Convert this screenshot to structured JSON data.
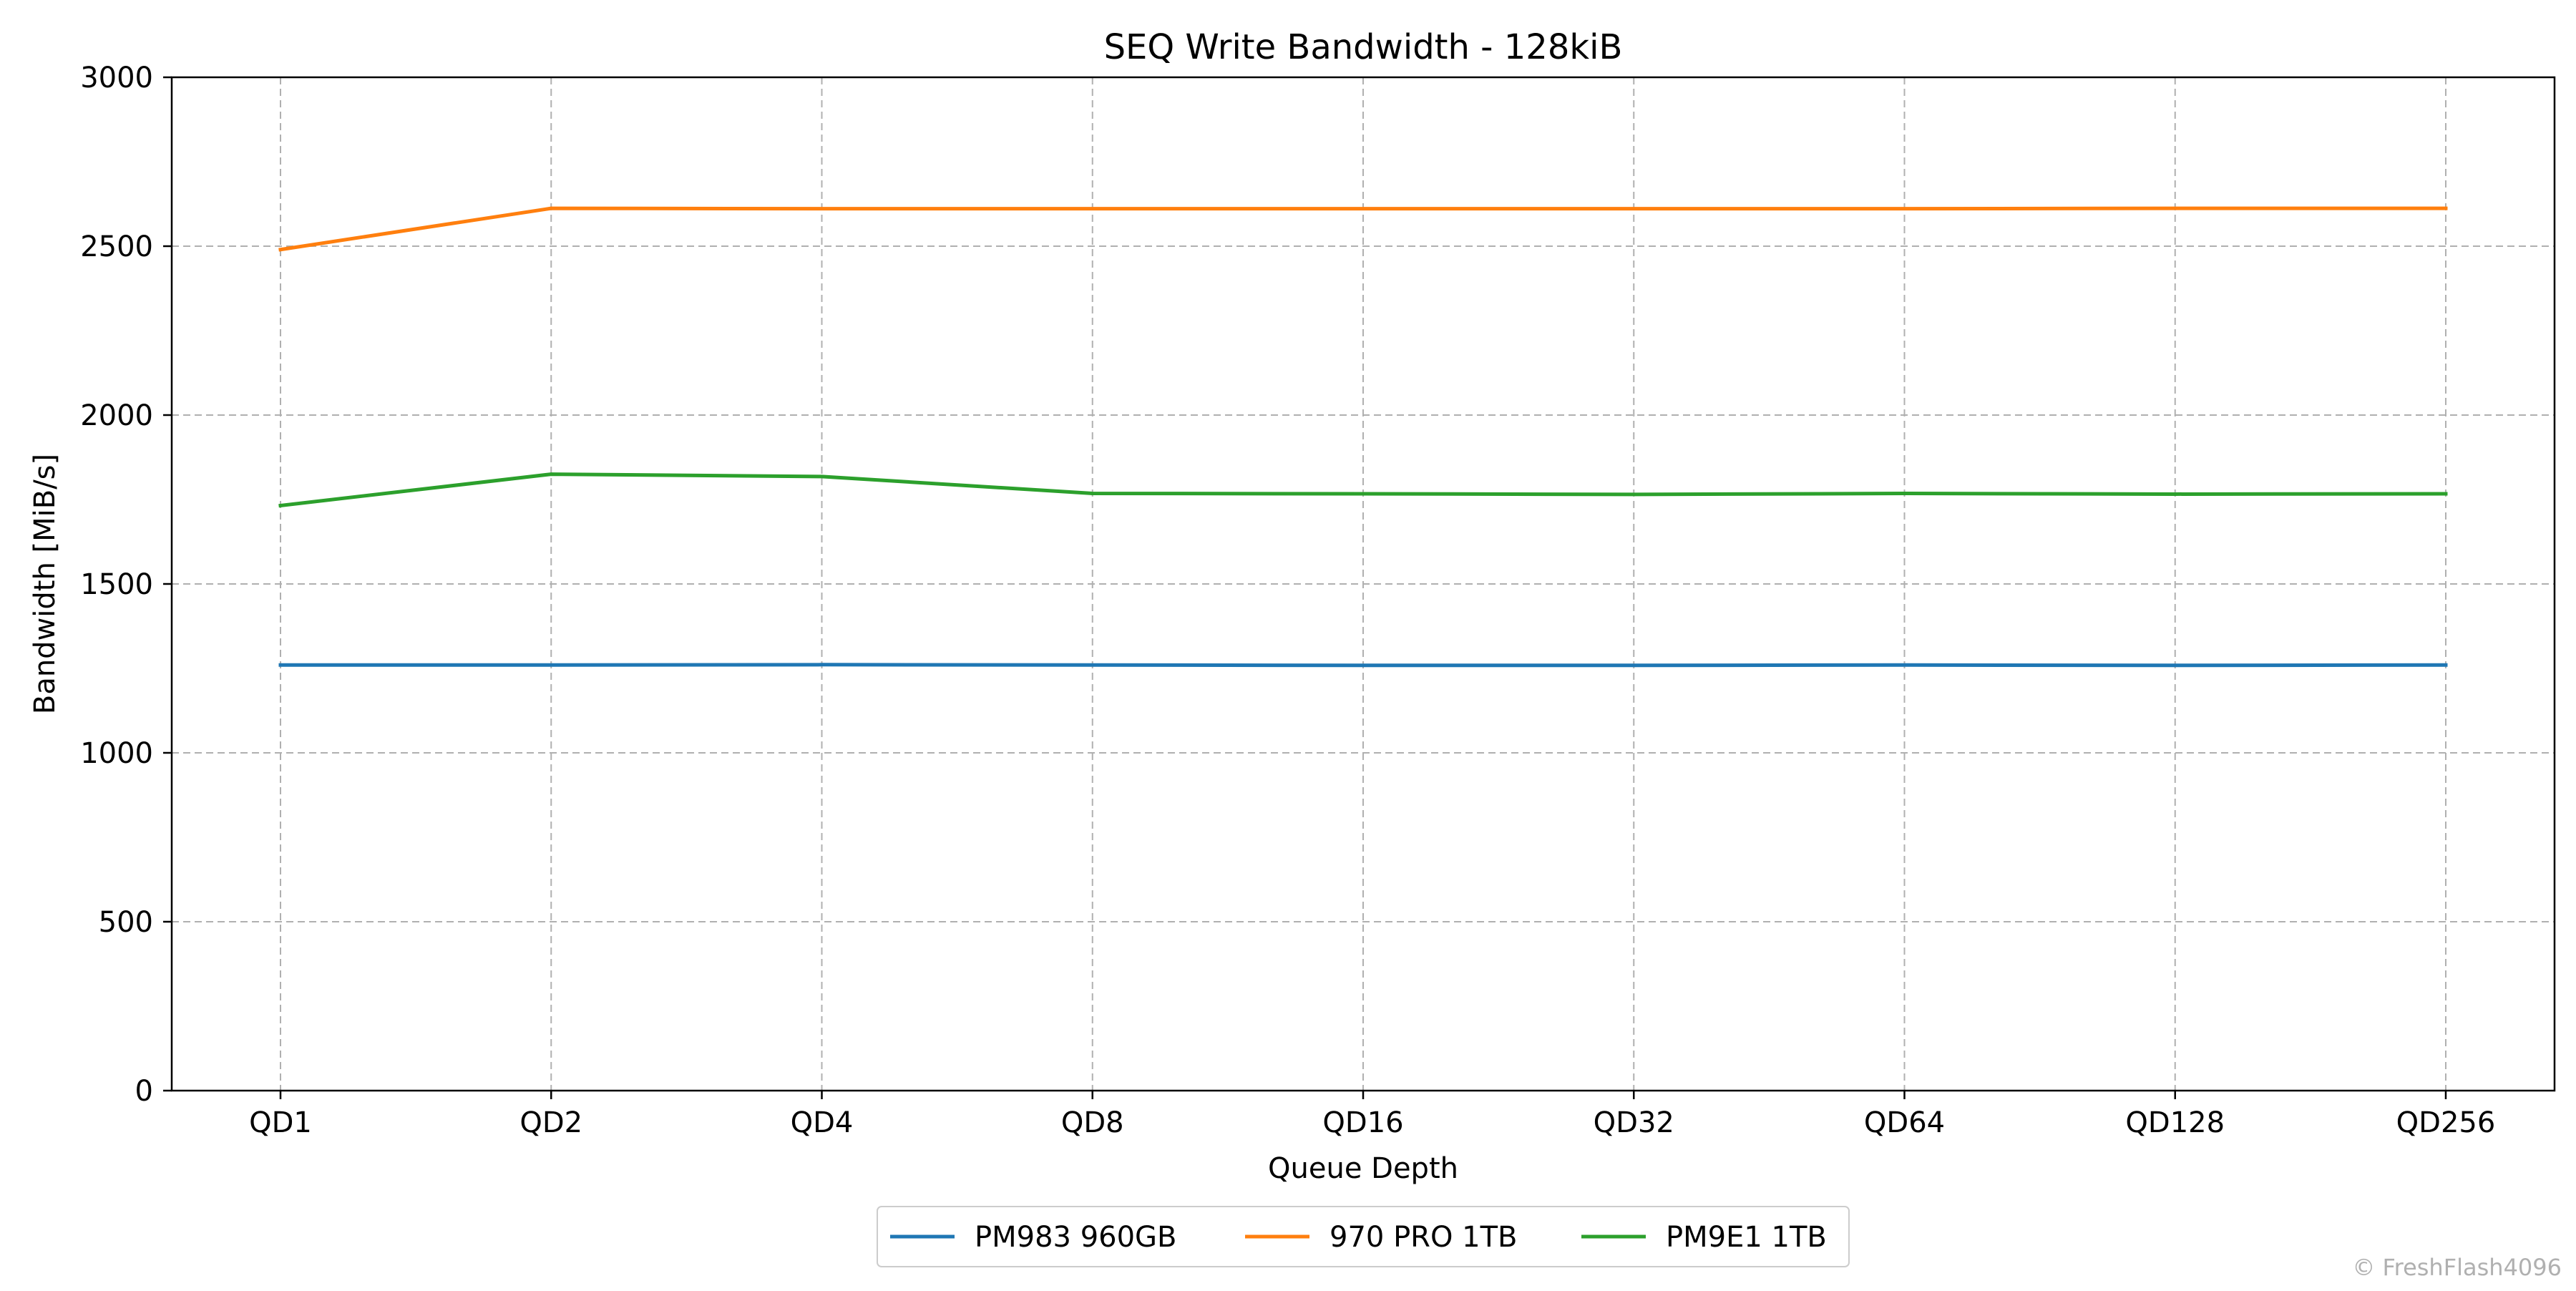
{
  "chart_data": {
    "type": "line",
    "title": "SEQ Write Bandwidth - 128kiB",
    "xlabel": "Queue Depth",
    "ylabel": "Bandwidth [MiB/s]",
    "categories": [
      "QD1",
      "QD2",
      "QD4",
      "QD8",
      "QD16",
      "QD32",
      "QD64",
      "QD128",
      "QD256"
    ],
    "ylim": [
      0,
      3000
    ],
    "yticks": [
      0,
      500,
      1000,
      1500,
      2000,
      2500,
      3000
    ],
    "grid": true,
    "legend_position": "bottom-center",
    "series": [
      {
        "name": "PM983 960GB",
        "color": "#1f77b4",
        "values": [
          1260,
          1260,
          1261,
          1260,
          1259,
          1259,
          1260,
          1259,
          1260
        ]
      },
      {
        "name": "970 PRO 1TB",
        "color": "#ff7f0e",
        "values": [
          2490,
          2612,
          2611,
          2611,
          2611,
          2611,
          2611,
          2612,
          2612
        ]
      },
      {
        "name": "PM9E1 1TB",
        "color": "#2ca02c",
        "values": [
          1732,
          1825,
          1818,
          1768,
          1767,
          1765,
          1768,
          1766,
          1767
        ]
      }
    ],
    "watermark": "© FreshFlash4096"
  }
}
